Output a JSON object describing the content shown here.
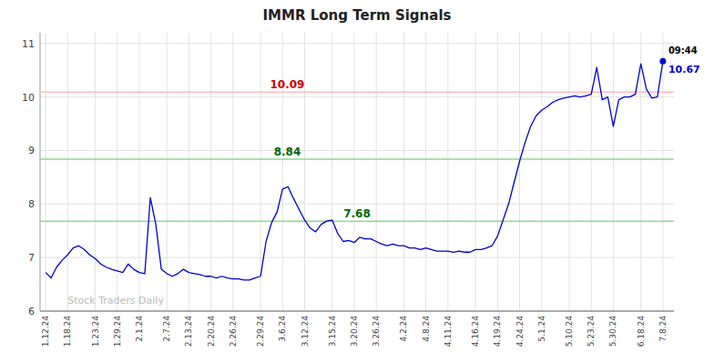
{
  "chart_data": {
    "type": "line",
    "title": "IMMR Long Term Signals",
    "categories": [
      "1.12.24",
      null,
      null,
      null,
      "1.18.24",
      null,
      null,
      null,
      null,
      "1.23.24",
      null,
      null,
      null,
      "1.29.24",
      null,
      null,
      null,
      "2.1.24",
      null,
      null,
      null,
      null,
      "2.7.24",
      null,
      null,
      null,
      "2.13.24",
      null,
      null,
      null,
      "2.20.24",
      null,
      null,
      null,
      "2.26.24",
      null,
      null,
      null,
      null,
      "2.29.24",
      null,
      null,
      null,
      "3.6.24",
      null,
      null,
      null,
      "3.12.24",
      null,
      null,
      null,
      null,
      "3.15.24",
      null,
      null,
      null,
      "3.20.24",
      null,
      null,
      null,
      "3.26.24",
      null,
      null,
      null,
      null,
      "4.2.24",
      null,
      null,
      null,
      "4.8.24",
      null,
      null,
      null,
      "4.11.24",
      null,
      null,
      null,
      null,
      "4.16.24",
      null,
      null,
      null,
      "4.19.24",
      null,
      null,
      null,
      "4.24.24",
      null,
      null,
      null,
      "5.1.24",
      null,
      null,
      null,
      null,
      "5.10.24",
      null,
      null,
      null,
      "5.23.24",
      null,
      null,
      null,
      "5.30.24",
      null,
      null,
      null,
      null,
      "6.18.24",
      null,
      null,
      null,
      "7.8.24"
    ],
    "values": [
      6.72,
      6.62,
      6.82,
      6.95,
      7.05,
      7.18,
      7.22,
      7.15,
      7.05,
      6.98,
      6.88,
      6.82,
      6.78,
      6.75,
      6.72,
      6.88,
      6.78,
      6.72,
      6.7,
      8.12,
      7.62,
      6.78,
      6.7,
      6.65,
      6.7,
      6.78,
      6.72,
      6.7,
      6.68,
      6.65,
      6.65,
      6.62,
      6.65,
      6.62,
      6.6,
      6.6,
      6.58,
      6.58,
      6.62,
      6.65,
      7.3,
      7.65,
      7.85,
      8.28,
      8.32,
      8.1,
      7.9,
      7.7,
      7.55,
      7.48,
      7.62,
      7.68,
      7.7,
      7.45,
      7.3,
      7.32,
      7.28,
      7.38,
      7.35,
      7.35,
      7.3,
      7.25,
      7.22,
      7.25,
      7.22,
      7.22,
      7.18,
      7.18,
      7.15,
      7.18,
      7.15,
      7.12,
      7.12,
      7.12,
      7.1,
      7.12,
      7.1,
      7.1,
      7.15,
      7.15,
      7.18,
      7.22,
      7.4,
      7.7,
      8.0,
      8.4,
      8.8,
      9.15,
      9.45,
      9.65,
      9.75,
      9.82,
      9.9,
      9.95,
      9.98,
      10.0,
      10.02,
      10.0,
      10.02,
      10.05,
      10.55,
      9.95,
      10.0,
      9.45,
      9.95,
      10.0,
      10.0,
      10.05,
      10.62,
      10.15,
      9.98,
      10.0,
      10.67
    ],
    "color": "#0000cc",
    "ylim": [
      6,
      11.2
    ],
    "yticks": [
      6,
      7,
      8,
      9,
      10,
      11
    ],
    "grid": true,
    "annotations": [
      {
        "text": "10.09",
        "y": 10.09,
        "color": "#cc0000",
        "line_color": "#ffbbbb"
      },
      {
        "text": "8.84",
        "y": 8.84,
        "color": "#006600",
        "line_color": "#88dd88"
      },
      {
        "text": "7.68",
        "y": 7.68,
        "color": "#006600",
        "line_color": "#88dd88"
      },
      {
        "text": "09:44",
        "color": "#000000"
      },
      {
        "text": "10.67",
        "color": "#0000cc"
      },
      {
        "text": "Stock Traders Daily",
        "color": "#bbbbbb"
      }
    ]
  }
}
